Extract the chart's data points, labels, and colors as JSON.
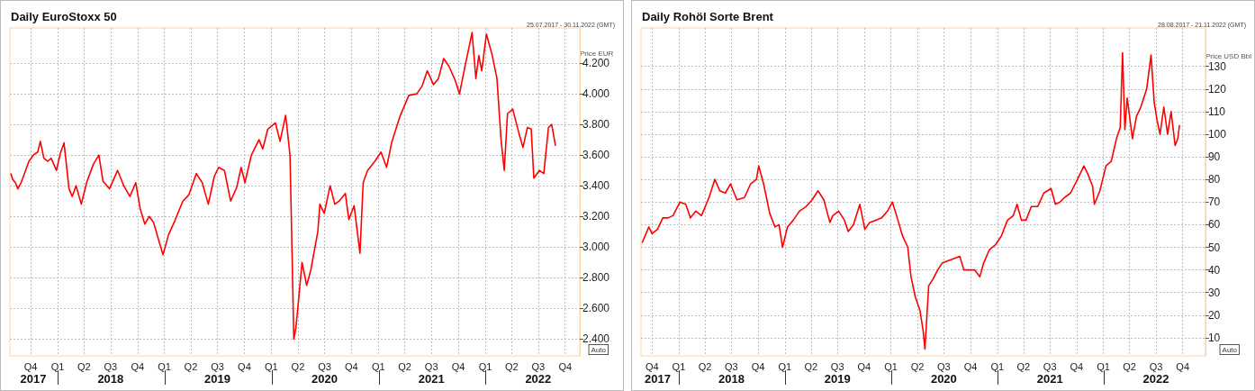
{
  "chart_data": [
    {
      "type": "line",
      "title": "Daily EuroStoxx 50",
      "subtitle": "25.07.2017 - 30.11.2022 (GMT)",
      "ylabel": "Price EUR",
      "annotations": [
        "Auto"
      ],
      "xlim": [
        "2017-07-22",
        "2022-11-20"
      ],
      "ylim": [
        2290,
        4430
      ],
      "xticks": [
        {
          "value": "2017-10-01",
          "label": "Q4"
        },
        {
          "value": "2018-01-01",
          "label": "Q1"
        },
        {
          "value": "2018-04-01",
          "label": "Q2"
        },
        {
          "value": "2018-07-01",
          "label": "Q3"
        },
        {
          "value": "2018-10-01",
          "label": "Q4"
        },
        {
          "value": "2019-01-01",
          "label": "Q1"
        },
        {
          "value": "2019-04-01",
          "label": "Q2"
        },
        {
          "value": "2019-07-01",
          "label": "Q3"
        },
        {
          "value": "2019-10-01",
          "label": "Q4"
        },
        {
          "value": "2020-01-01",
          "label": "Q1"
        },
        {
          "value": "2020-04-01",
          "label": "Q2"
        },
        {
          "value": "2020-07-01",
          "label": "Q3"
        },
        {
          "value": "2020-10-01",
          "label": "Q4"
        },
        {
          "value": "2021-01-01",
          "label": "Q1"
        },
        {
          "value": "2021-04-01",
          "label": "Q2"
        },
        {
          "value": "2021-07-01",
          "label": "Q3"
        },
        {
          "value": "2021-10-01",
          "label": "Q4"
        },
        {
          "value": "2022-01-01",
          "label": "Q1"
        },
        {
          "value": "2022-04-01",
          "label": "Q2"
        },
        {
          "value": "2022-07-01",
          "label": "Q3"
        },
        {
          "value": "2022-10-01",
          "label": "Q4"
        }
      ],
      "x2lim": [
        "2017-07-22",
        "2022-11-20"
      ],
      "x2ticks": [
        {
          "value": "2017-10-10",
          "label": "2017"
        },
        {
          "value": "2018-01-03",
          "label": null
        },
        {
          "value": "2018-07-01",
          "label": "2018"
        },
        {
          "value": "2019-01-03",
          "label": null
        },
        {
          "value": "2019-07-01",
          "label": "2019"
        },
        {
          "value": "2020-01-03",
          "label": null
        },
        {
          "value": "2020-07-01",
          "label": "2020"
        },
        {
          "value": "2021-01-03",
          "label": null
        },
        {
          "value": "2021-07-01",
          "label": "2021"
        },
        {
          "value": "2022-01-03",
          "label": null
        },
        {
          "value": "2022-07-01",
          "label": "2022"
        }
      ],
      "yticks": [
        {
          "value": 2400,
          "label": "2.400"
        },
        {
          "value": 2600,
          "label": "2.600"
        },
        {
          "value": 2800,
          "label": "2.800"
        },
        {
          "value": 3000,
          "label": "3.000"
        },
        {
          "value": 3200,
          "label": "3.200"
        },
        {
          "value": 3400,
          "label": "3.400"
        },
        {
          "value": 3600,
          "label": "3.600"
        },
        {
          "value": 3800,
          "label": "3.800"
        },
        {
          "value": 4000,
          "label": "4.000"
        },
        {
          "value": 4200,
          "label": "4.200"
        }
      ],
      "grid": true,
      "marker": "none",
      "line_style": "solid",
      "series": [
        {
          "color": "#ff0000",
          "x": [
            "2017-07-25",
            "2017-08-01",
            "2017-08-10",
            "2017-08-18",
            "2017-08-29",
            "2017-09-10",
            "2017-09-25",
            "2017-10-10",
            "2017-10-25",
            "2017-11-03",
            "2017-11-15",
            "2017-11-28",
            "2017-12-10",
            "2017-12-28",
            "2018-01-10",
            "2018-01-23",
            "2018-02-09",
            "2018-02-20",
            "2018-03-05",
            "2018-03-23",
            "2018-04-10",
            "2018-05-03",
            "2018-05-22",
            "2018-06-05",
            "2018-06-27",
            "2018-07-25",
            "2018-08-15",
            "2018-09-05",
            "2018-09-25",
            "2018-10-10",
            "2018-10-26",
            "2018-11-10",
            "2018-11-25",
            "2018-12-10",
            "2018-12-27",
            "2019-01-15",
            "2019-02-05",
            "2019-03-05",
            "2019-03-25",
            "2019-04-20",
            "2019-05-10",
            "2019-05-31",
            "2019-06-20",
            "2019-07-05",
            "2019-07-25",
            "2019-08-15",
            "2019-09-05",
            "2019-09-20",
            "2019-10-03",
            "2019-10-25",
            "2019-11-20",
            "2019-12-03",
            "2019-12-20",
            "2020-01-15",
            "2020-01-31",
            "2020-02-19",
            "2020-03-05",
            "2020-03-18",
            "2020-03-25",
            "2020-04-03",
            "2020-04-15",
            "2020-05-01",
            "2020-05-15",
            "2020-06-08",
            "2020-06-15",
            "2020-06-30",
            "2020-07-20",
            "2020-08-05",
            "2020-08-20",
            "2020-09-10",
            "2020-09-22",
            "2020-10-10",
            "2020-10-30",
            "2020-11-10",
            "2020-11-25",
            "2020-12-20",
            "2021-01-10",
            "2021-01-29",
            "2021-02-15",
            "2021-03-15",
            "2021-04-15",
            "2021-05-12",
            "2021-05-30",
            "2021-06-17",
            "2021-07-08",
            "2021-07-25",
            "2021-08-12",
            "2021-08-30",
            "2021-09-20",
            "2021-10-05",
            "2021-10-25",
            "2021-11-17",
            "2021-11-30",
            "2021-12-10",
            "2021-12-20",
            "2022-01-05",
            "2022-01-25",
            "2022-02-10",
            "2022-02-24",
            "2022-03-07",
            "2022-03-18",
            "2022-04-05",
            "2022-04-25",
            "2022-05-10",
            "2022-05-25",
            "2022-06-07",
            "2022-06-16",
            "2022-07-05",
            "2022-07-20",
            "2022-08-05",
            "2022-08-16",
            "2022-08-29"
          ],
          "values": [
            3480,
            3440,
            3420,
            3380,
            3420,
            3480,
            3560,
            3600,
            3620,
            3690,
            3580,
            3560,
            3580,
            3500,
            3610,
            3680,
            3380,
            3330,
            3400,
            3280,
            3420,
            3540,
            3600,
            3430,
            3380,
            3500,
            3400,
            3330,
            3420,
            3250,
            3150,
            3200,
            3160,
            3060,
            2950,
            3080,
            3170,
            3300,
            3340,
            3480,
            3420,
            3280,
            3460,
            3520,
            3500,
            3300,
            3390,
            3520,
            3420,
            3600,
            3700,
            3640,
            3770,
            3810,
            3690,
            3860,
            3600,
            2400,
            2470,
            2650,
            2900,
            2750,
            2850,
            3100,
            3280,
            3220,
            3400,
            3280,
            3300,
            3350,
            3180,
            3270,
            2960,
            3420,
            3500,
            3560,
            3620,
            3520,
            3680,
            3850,
            3990,
            4000,
            4050,
            4150,
            4060,
            4100,
            4230,
            4180,
            4090,
            4000,
            4190,
            4400,
            4100,
            4250,
            4150,
            4390,
            4250,
            4100,
            3700,
            3500,
            3870,
            3900,
            3750,
            3650,
            3780,
            3770,
            3450,
            3500,
            3480,
            3780,
            3800,
            3660
          ]
        }
      ]
    },
    {
      "type": "line",
      "title": "Daily Rohöl Sorte Brent",
      "subtitle": "28.08.2017 - 21.11.2022 (GMT)",
      "ylabel": "Price USD Bbl",
      "annotations": [
        "Auto"
      ],
      "xlim": [
        "2017-08-24",
        "2022-12-18"
      ],
      "ylim": [
        2,
        147
      ],
      "xticks": [
        {
          "value": "2017-10-01",
          "label": "Q4"
        },
        {
          "value": "2018-01-01",
          "label": "Q1"
        },
        {
          "value": "2018-04-01",
          "label": "Q2"
        },
        {
          "value": "2018-07-01",
          "label": "Q3"
        },
        {
          "value": "2018-10-01",
          "label": "Q4"
        },
        {
          "value": "2019-01-01",
          "label": "Q1"
        },
        {
          "value": "2019-04-01",
          "label": "Q2"
        },
        {
          "value": "2019-07-01",
          "label": "Q3"
        },
        {
          "value": "2019-10-01",
          "label": "Q4"
        },
        {
          "value": "2020-01-01",
          "label": "Q1"
        },
        {
          "value": "2020-04-01",
          "label": "Q2"
        },
        {
          "value": "2020-07-01",
          "label": "Q3"
        },
        {
          "value": "2020-10-01",
          "label": "Q4"
        },
        {
          "value": "2021-01-01",
          "label": "Q1"
        },
        {
          "value": "2021-04-01",
          "label": "Q2"
        },
        {
          "value": "2021-07-01",
          "label": "Q3"
        },
        {
          "value": "2021-10-01",
          "label": "Q4"
        },
        {
          "value": "2022-01-01",
          "label": "Q1"
        },
        {
          "value": "2022-04-01",
          "label": "Q2"
        },
        {
          "value": "2022-07-01",
          "label": "Q3"
        },
        {
          "value": "2022-10-01",
          "label": "Q4"
        }
      ],
      "x2lim": [
        "2017-08-24",
        "2022-12-18"
      ],
      "x2ticks": [
        {
          "value": "2017-10-20",
          "label": "2017"
        },
        {
          "value": "2018-01-03",
          "label": null
        },
        {
          "value": "2018-07-01",
          "label": "2018"
        },
        {
          "value": "2019-01-03",
          "label": null
        },
        {
          "value": "2019-07-01",
          "label": "2019"
        },
        {
          "value": "2020-01-03",
          "label": null
        },
        {
          "value": "2020-07-01",
          "label": "2020"
        },
        {
          "value": "2021-01-03",
          "label": null
        },
        {
          "value": "2021-07-01",
          "label": "2021"
        },
        {
          "value": "2022-01-03",
          "label": null
        },
        {
          "value": "2022-07-01",
          "label": "2022"
        }
      ],
      "yticks": [
        10,
        20,
        30,
        40,
        50,
        60,
        70,
        80,
        90,
        100,
        110,
        120,
        130
      ],
      "grid": true,
      "marker": "none",
      "line_style": "solid",
      "series": [
        {
          "color": "#ff0000",
          "x": [
            "2017-08-28",
            "2017-09-10",
            "2017-09-20",
            "2017-10-01",
            "2017-10-20",
            "2017-11-07",
            "2017-11-25",
            "2017-12-12",
            "2018-01-05",
            "2018-01-25",
            "2018-02-10",
            "2018-03-01",
            "2018-03-20",
            "2018-04-15",
            "2018-05-05",
            "2018-05-22",
            "2018-06-10",
            "2018-06-28",
            "2018-07-20",
            "2018-08-15",
            "2018-09-05",
            "2018-09-25",
            "2018-10-03",
            "2018-10-20",
            "2018-11-10",
            "2018-11-28",
            "2018-12-12",
            "2018-12-24",
            "2019-01-10",
            "2019-01-30",
            "2019-02-20",
            "2019-03-15",
            "2019-04-05",
            "2019-04-25",
            "2019-05-15",
            "2019-06-05",
            "2019-06-15",
            "2019-07-05",
            "2019-07-25",
            "2019-08-07",
            "2019-08-25",
            "2019-09-16",
            "2019-10-03",
            "2019-10-20",
            "2019-11-10",
            "2019-11-30",
            "2019-12-20",
            "2020-01-06",
            "2020-01-25",
            "2020-02-10",
            "2020-02-28",
            "2020-03-10",
            "2020-03-25",
            "2020-04-10",
            "2020-04-21",
            "2020-04-27",
            "2020-05-10",
            "2020-05-25",
            "2020-06-10",
            "2020-06-25",
            "2020-07-15",
            "2020-08-05",
            "2020-08-25",
            "2020-09-08",
            "2020-09-25",
            "2020-10-15",
            "2020-11-02",
            "2020-11-15",
            "2020-12-05",
            "2020-12-25",
            "2021-01-15",
            "2021-02-05",
            "2021-02-25",
            "2021-03-10",
            "2021-03-25",
            "2021-04-10",
            "2021-04-28",
            "2021-05-20",
            "2021-06-10",
            "2021-07-05",
            "2021-07-20",
            "2021-08-05",
            "2021-08-20",
            "2021-09-10",
            "2021-09-30",
            "2021-10-15",
            "2021-10-26",
            "2021-11-10",
            "2021-11-25",
            "2021-12-01",
            "2021-12-20",
            "2022-01-10",
            "2022-01-28",
            "2022-02-15",
            "2022-02-28",
            "2022-03-08",
            "2022-03-16",
            "2022-03-24",
            "2022-04-11",
            "2022-04-25",
            "2022-05-10",
            "2022-05-30",
            "2022-06-14",
            "2022-06-25",
            "2022-07-05",
            "2022-07-15",
            "2022-07-28",
            "2022-08-10",
            "2022-08-22",
            "2022-09-05",
            "2022-09-14",
            "2022-09-20"
          ],
          "values": [
            52,
            56,
            59,
            56,
            58,
            63,
            63,
            64,
            70,
            69,
            63,
            66,
            64,
            72,
            80,
            75,
            74,
            78,
            71,
            72,
            78,
            80,
            86,
            78,
            65,
            59,
            60,
            50,
            59,
            62,
            66,
            68,
            71,
            75,
            71,
            61,
            64,
            66,
            62,
            57,
            60,
            69,
            58,
            61,
            62,
            63,
            66,
            70,
            62,
            55,
            50,
            37,
            28,
            22,
            13,
            5,
            33,
            36,
            40,
            43,
            44,
            45,
            46,
            40,
            40,
            40,
            37,
            43,
            49,
            51,
            55,
            62,
            64,
            69,
            62,
            62,
            68,
            68,
            74,
            76,
            69,
            70,
            72,
            74,
            79,
            83,
            86,
            82,
            77,
            69,
            75,
            86,
            88,
            98,
            103,
            136,
            102,
            116,
            98,
            108,
            112,
            120,
            135,
            114,
            106,
            100,
            112,
            100,
            110,
            95,
            98,
            104
          ]
        }
      ]
    }
  ]
}
